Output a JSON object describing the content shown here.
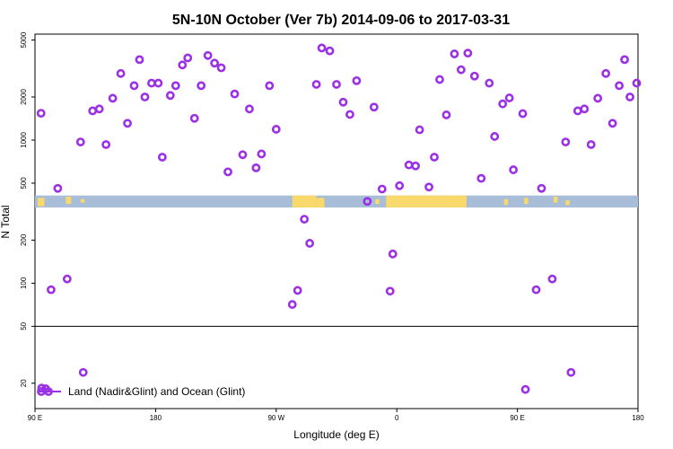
{
  "chart_data": {
    "type": "scatter",
    "title": "5N-10N October (Ver 7b)   2014-09-06 to 2017-03-31",
    "xlabel": "Longitude (deg E)",
    "ylabel": "N Total",
    "x_unit": "deg E (unwrapped, 90 to 540)",
    "xlim": [
      90,
      540
    ],
    "x_ticks": [
      {
        "value": 90,
        "label": "90 E"
      },
      {
        "value": 180,
        "label": "180"
      },
      {
        "value": 270,
        "label": "90 W"
      },
      {
        "value": 360,
        "label": "0"
      },
      {
        "value": 450,
        "label": "90 E"
      },
      {
        "value": 540,
        "label": "180"
      }
    ],
    "y_scale": "log",
    "ylim": [
      13.3,
      5500
    ],
    "y_ticks": [
      {
        "value": 20,
        "label": "20"
      },
      {
        "value": 50,
        "label": "50"
      },
      {
        "value": 100,
        "label": "100"
      },
      {
        "value": 200,
        "label": "200"
      },
      {
        "value": 500,
        "label": "500"
      },
      {
        "value": 1000,
        "label": "1000"
      },
      {
        "value": 2000,
        "label": "2000"
      },
      {
        "value": 5000,
        "label": "5000"
      }
    ],
    "reference_line_y": 50,
    "map_band": {
      "y_range": [
        338,
        410
      ],
      "ocean_color": "#a8bdd8",
      "land_color": "#f9d86c"
    },
    "legend": {
      "position": "bottom-left"
    },
    "series": [
      {
        "name": "Land (Nadir&Glint) and Ocean (Glint)",
        "color": "#9b30e6",
        "marker": "open-circle",
        "points": [
          [
            94.5,
            1540
          ],
          [
            95,
            18.5
          ],
          [
            98,
            18.3
          ],
          [
            102,
            90
          ],
          [
            107,
            460
          ],
          [
            114,
            107
          ],
          [
            124,
            970
          ],
          [
            126,
            23.8
          ],
          [
            133,
            1600
          ],
          [
            138,
            1650
          ],
          [
            143,
            930
          ],
          [
            148,
            1960
          ],
          [
            154,
            2920
          ],
          [
            159,
            1310
          ],
          [
            164,
            2400
          ],
          [
            168,
            3650
          ],
          [
            172,
            2000
          ],
          [
            177,
            2500
          ],
          [
            182,
            2500
          ],
          [
            185,
            760
          ],
          [
            191,
            2050
          ],
          [
            195,
            2400
          ],
          [
            200,
            3350
          ],
          [
            204,
            3750
          ],
          [
            209,
            1420
          ],
          [
            214,
            2400
          ],
          [
            219,
            3900
          ],
          [
            224,
            3450
          ],
          [
            229,
            3200
          ],
          [
            234,
            600
          ],
          [
            239,
            2100
          ],
          [
            245,
            790
          ],
          [
            250,
            1650
          ],
          [
            255,
            640
          ],
          [
            259,
            800
          ],
          [
            265,
            2400
          ],
          [
            270,
            1190
          ],
          [
            282,
            71
          ],
          [
            286,
            89
          ],
          [
            291,
            280
          ],
          [
            295,
            190
          ],
          [
            300,
            2450
          ],
          [
            304,
            4400
          ],
          [
            310,
            4200
          ],
          [
            315,
            2450
          ],
          [
            320,
            1840
          ],
          [
            325,
            1510
          ],
          [
            330,
            2600
          ],
          [
            338,
            373
          ],
          [
            343,
            1700
          ],
          [
            349,
            455
          ],
          [
            355,
            88
          ],
          [
            357,
            160
          ],
          [
            362,
            480
          ],
          [
            369,
            670
          ],
          [
            374,
            660
          ],
          [
            377,
            1180
          ],
          [
            384,
            470
          ],
          [
            388,
            760
          ],
          [
            392,
            2650
          ],
          [
            397,
            1500
          ],
          [
            403,
            4000
          ],
          [
            408,
            3100
          ],
          [
            413,
            4050
          ],
          [
            418,
            2800
          ],
          [
            423,
            540
          ],
          [
            429,
            2500
          ],
          [
            433,
            1060
          ],
          [
            439,
            1790
          ],
          [
            444,
            1970
          ],
          [
            447,
            620
          ],
          [
            454,
            1530
          ],
          [
            456,
            18.1
          ],
          [
            464,
            90
          ],
          [
            468,
            460
          ],
          [
            476,
            107
          ],
          [
            486,
            970
          ],
          [
            490,
            23.8
          ],
          [
            495,
            1600
          ],
          [
            500,
            1650
          ],
          [
            505,
            930
          ],
          [
            510,
            1960
          ],
          [
            516,
            2920
          ],
          [
            521,
            1310
          ],
          [
            526,
            2400
          ],
          [
            530,
            3650
          ],
          [
            534,
            2000
          ],
          [
            539,
            2500
          ]
        ]
      }
    ]
  }
}
